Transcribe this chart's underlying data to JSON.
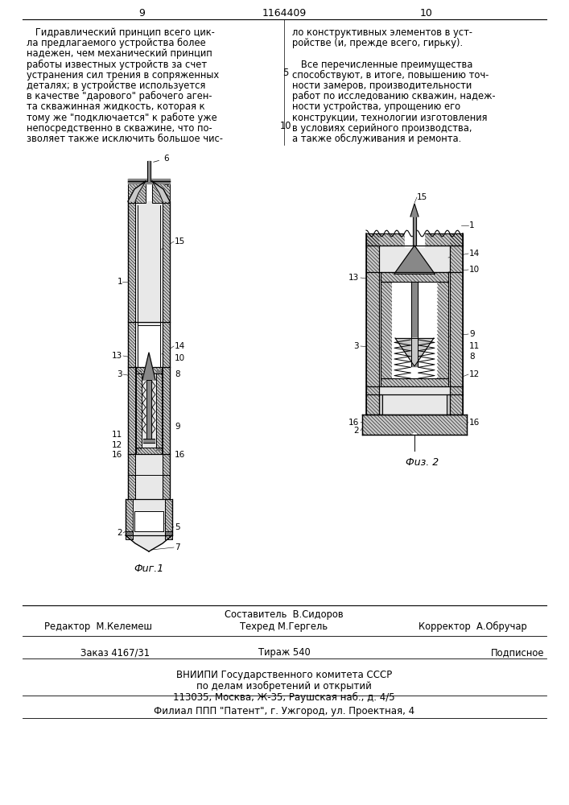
{
  "page_number_left": "9",
  "page_number_right": "10",
  "patent_number": "1164409",
  "background_color": "#ffffff",
  "text_color": "#000000",
  "fig1_caption": "Фuг.1",
  "fig2_caption": "Фuз. 2",
  "footer_sestavitel": "Составитель  В.Сидоров",
  "footer_line1_left": "Редактор  М.Келемеш",
  "footer_line1_mid": "Техред М.Гергель",
  "footer_line1_right": "Корректор  А.Обручар",
  "footer_zakaz": "Заказ 4167/31",
  "footer_tirazh": "Тираж 540",
  "footer_podpisnoe": "Подписное",
  "footer_line3": "ВНИИПИ Государственного комитета СССР",
  "footer_line4": "по делам изобретений и открытий",
  "footer_line5": "113035, Москва, Ж-35, Раушская наб., д. 4/5",
  "footer_line6": "Филиал ППП \"Патент\", г. Ужгород, ул. Проектная, 4"
}
